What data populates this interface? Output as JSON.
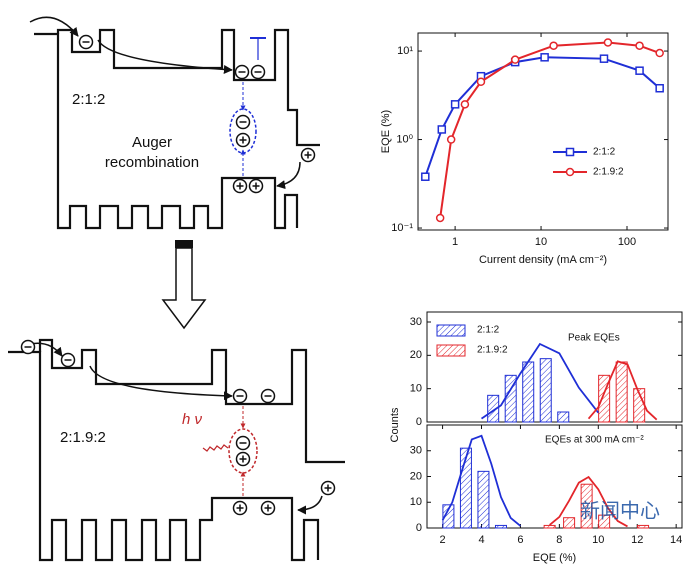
{
  "diagram": {
    "top": {
      "label": "2:1:2",
      "process": [
        "Auger",
        "recombination"
      ]
    },
    "bottom": {
      "label": "2:1.9:2",
      "emission": "h ν"
    }
  },
  "watermark": "新闻中心",
  "chart_data": [
    {
      "type": "line",
      "xscale": "log",
      "yscale": "log",
      "xlabel": "Current density (mA cm⁻²)",
      "ylabel": "EQE (%)",
      "xlim": [
        0.37,
        300
      ],
      "ylim": [
        0.095,
        16
      ],
      "xticks": [
        1,
        10,
        100
      ],
      "yticks": [
        {
          "value": 0.1,
          "label": "10⁻¹"
        },
        {
          "value": 1,
          "label": "10⁰"
        },
        {
          "value": 10,
          "label": "10¹"
        }
      ],
      "legend": "lower right",
      "series": [
        {
          "name": "2:1:2",
          "color": "#1f2fd6",
          "marker": "square",
          "x": [
            0.45,
            0.7,
            1,
            2,
            5,
            11,
            54,
            140,
            240
          ],
          "values": [
            0.38,
            1.3,
            2.5,
            5.2,
            7.5,
            8.5,
            8.2,
            6.0,
            3.8
          ]
        },
        {
          "name": "2:1.9:2",
          "color": "#e3262b",
          "marker": "circle",
          "x": [
            0.67,
            0.9,
            1.3,
            2,
            5,
            14,
            60,
            140,
            240
          ],
          "values": [
            0.13,
            1.0,
            2.5,
            4.5,
            8.0,
            11.5,
            12.5,
            11.5,
            9.5
          ]
        }
      ]
    },
    {
      "type": "bar",
      "annotation": "Peak EQEs",
      "legend": "upper left",
      "xlim": [
        1.2,
        14.3
      ],
      "ylim": [
        0,
        33
      ],
      "yticks": [
        0,
        10,
        20,
        30
      ],
      "series": [
        {
          "name": "2:1:2",
          "color": "#1f2fd6",
          "x": [
            4.6,
            5.5,
            6.4,
            7.3,
            8.2
          ],
          "values": [
            8,
            14,
            18,
            19,
            3
          ]
        },
        {
          "name": "2:1.9:2",
          "color": "#e3262b",
          "x": [
            10.3,
            11.2,
            12.1
          ],
          "values": [
            14,
            18,
            10
          ]
        }
      ],
      "fits": [
        {
          "color": "#1f2fd6",
          "x": [
            4,
            5,
            6,
            7,
            8,
            9,
            10
          ],
          "values": [
            1,
            5,
            14.6,
            23.4,
            20.6,
            10.3,
            2.8
          ]
        },
        {
          "color": "#e3262b",
          "x": [
            9.5,
            10,
            10.5,
            11,
            11.5,
            12,
            12.5,
            13
          ],
          "values": [
            1,
            4.4,
            11.5,
            18.2,
            17.3,
            9.9,
            3.4,
            0.7
          ]
        }
      ]
    },
    {
      "type": "bar",
      "annotation": "EQEs at 300 mA cm⁻²",
      "xlabel": "EQE (%)",
      "ylabel": "Counts",
      "xlim": [
        1.2,
        14.3
      ],
      "ylim": [
        0,
        40
      ],
      "xticks": [
        2,
        4,
        6,
        8,
        10,
        12,
        14
      ],
      "yticks": [
        0,
        10,
        20,
        30
      ],
      "series": [
        {
          "color": "#1f2fd6",
          "x": [
            2.3,
            3.2,
            4.1,
            5.0
          ],
          "values": [
            9,
            31,
            22,
            1
          ]
        },
        {
          "color": "#e3262b",
          "x": [
            7.5,
            8.5,
            9.4,
            10.3,
            12.3
          ],
          "values": [
            1,
            4,
            17,
            5,
            1
          ]
        }
      ],
      "fits": [
        {
          "color": "#1f2fd6",
          "x": [
            2,
            2.5,
            3,
            3.5,
            4,
            4.5,
            5,
            5.5,
            6
          ],
          "values": [
            3,
            10,
            22.4,
            34.4,
            35.8,
            25,
            12,
            3.9,
            0.8
          ]
        },
        {
          "color": "#e3262b",
          "x": [
            7.5,
            8,
            8.5,
            9,
            9.5,
            10,
            10.5,
            11,
            11.5
          ],
          "values": [
            1.2,
            4.3,
            10.6,
            17.6,
            19.8,
            15,
            7.7,
            2.7,
            0.6
          ]
        }
      ]
    }
  ]
}
